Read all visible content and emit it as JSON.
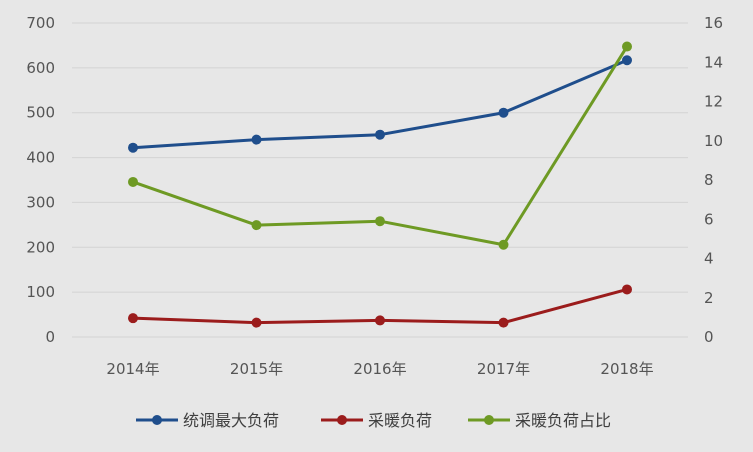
{
  "chart_data": {
    "type": "line",
    "categories": [
      "2014年",
      "2015年",
      "2016年",
      "2017年",
      "2018年"
    ],
    "y_left": {
      "ticks": [
        "0",
        "100",
        "200",
        "300",
        "400",
        "500",
        "600",
        "700"
      ],
      "ylim": [
        0,
        700
      ]
    },
    "y_right": {
      "ticks": [
        "0",
        "2",
        "4",
        "6",
        "8",
        "10",
        "12",
        "14",
        "16"
      ],
      "ylim": [
        0,
        16
      ]
    },
    "grid": true,
    "legend_position": "bottom",
    "series": [
      {
        "name": "统调最大负荷",
        "axis": "left",
        "color": "#1f4e8c",
        "values": [
          422,
          440,
          451,
          500,
          617
        ]
      },
      {
        "name": "采暖负荷",
        "axis": "left",
        "color": "#9b1c1c",
        "values": [
          42,
          32,
          37,
          32,
          106
        ]
      },
      {
        "name": "采暖负荷占比",
        "axis": "right",
        "color": "#6e9a24",
        "values": [
          7.9,
          5.7,
          5.9,
          4.7,
          14.8
        ]
      }
    ]
  }
}
